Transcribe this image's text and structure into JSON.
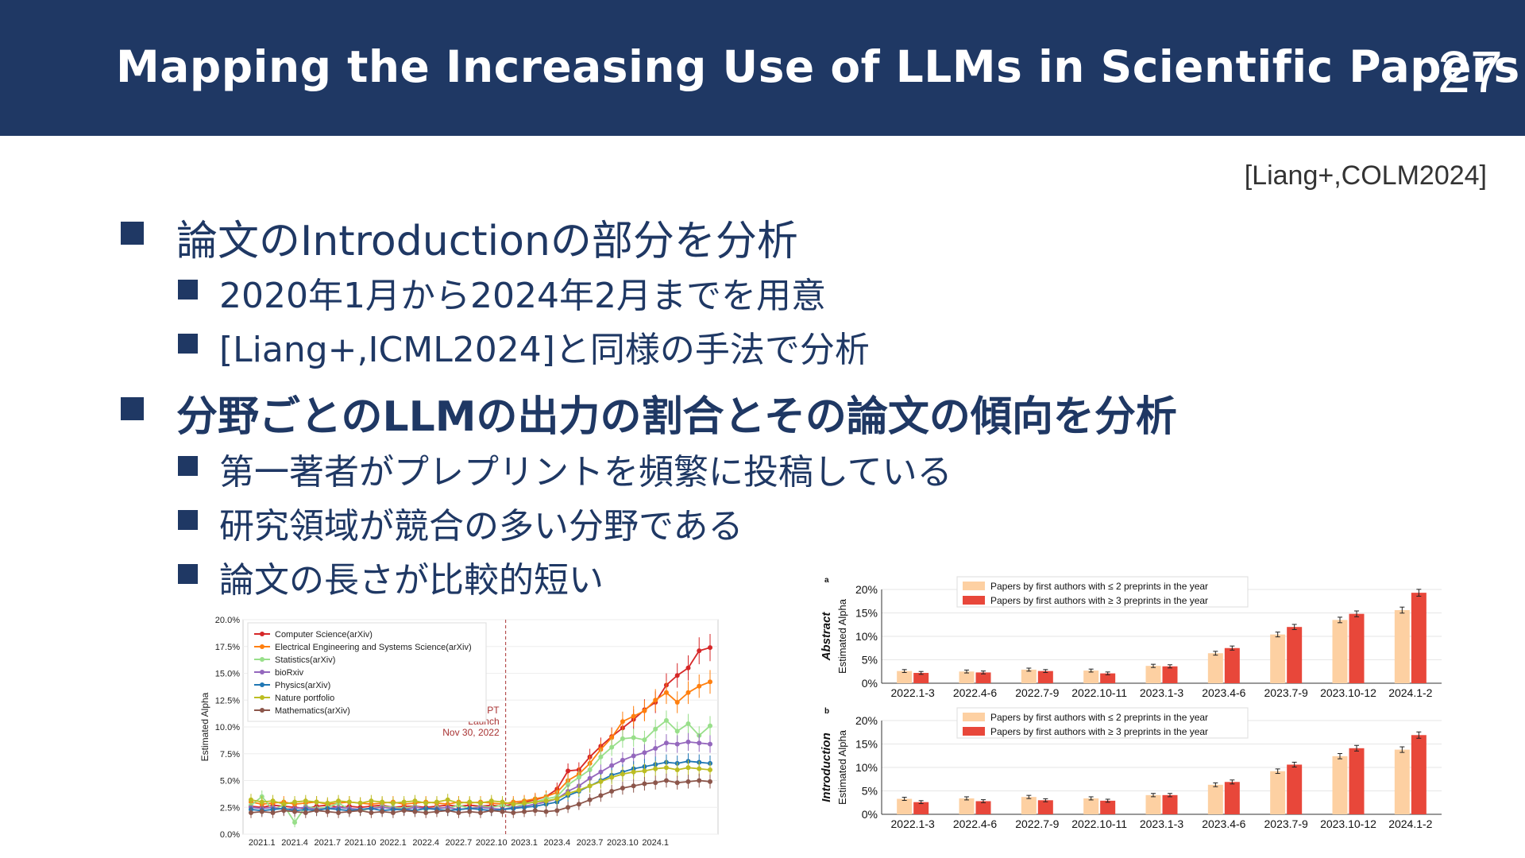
{
  "slide": {
    "title": "Mapping the Increasing Use of LLMs in Scientific Papers",
    "page_number": "27",
    "citation": "[Liang+,COLM2024]"
  },
  "bullets": [
    {
      "text": "論文のIntroductionの部分を分析",
      "sub": [
        "2020年1月から2024年2月までを用意",
        "[Liang+,ICML2024]と同様の手法で分析"
      ]
    },
    {
      "text": "分野ごとのLLMの出力の割合とその論文の傾向を分析",
      "sub": [
        "第一著者がプレプリントを頻繁に投稿している",
        "研究領域が競合の多い分野である",
        "論文の長さが比較的短い"
      ]
    }
  ],
  "chart_data": [
    {
      "type": "line",
      "ylabel": "Estimated Alpha",
      "ylim": [
        0,
        20
      ],
      "y_ticks": [
        "0.0%",
        "2.5%",
        "5.0%",
        "7.5%",
        "10.0%",
        "12.5%",
        "15.0%",
        "17.5%",
        "20.0%"
      ],
      "x_ticks": [
        "2021.1",
        "2021.4",
        "2021.7",
        "2021.10",
        "2022.1",
        "2022.4",
        "2022.7",
        "2022.10",
        "2023.1",
        "2023.4",
        "2023.7",
        "2023.10",
        "2024.1"
      ],
      "annotation": [
        "ChatGPT",
        "Launch",
        "Nov 30, 2022"
      ],
      "annotation_x": "2022.11",
      "series": [
        {
          "name": "Computer Science(arXiv)",
          "color": "#d62728",
          "values": [
            2.6,
            2.5,
            2.7,
            2.6,
            2.5,
            2.4,
            2.6,
            2.7,
            2.5,
            2.6,
            2.5,
            2.6,
            2.7,
            2.5,
            2.6,
            2.6,
            2.5,
            2.6,
            2.7,
            2.6,
            2.7,
            2.6,
            2.7,
            2.6,
            2.8,
            3.0,
            3.2,
            3.5,
            4.2,
            5.9,
            6.0,
            7.2,
            8.2,
            9.1,
            9.9,
            10.7,
            11.6,
            12.3,
            13.9,
            14.8,
            15.5,
            17.1,
            17.4
          ]
        },
        {
          "name": "Electrical Engineering and Systems Science(arXiv)",
          "color": "#ff7f0e",
          "values": [
            3.0,
            2.8,
            2.9,
            3.0,
            2.8,
            2.9,
            3.0,
            2.8,
            2.9,
            3.0,
            2.9,
            2.8,
            2.9,
            3.0,
            2.8,
            2.9,
            3.0,
            2.9,
            2.8,
            3.0,
            2.9,
            3.0,
            2.9,
            2.8,
            3.0,
            3.1,
            3.3,
            3.5,
            3.9,
            5.0,
            5.6,
            6.6,
            7.9,
            9.0,
            10.5,
            11.0,
            11.5,
            12.5,
            13.2,
            12.3,
            13.2,
            13.8,
            14.2
          ]
        },
        {
          "name": "Statistics(arXiv)",
          "color": "#98df8a",
          "values": [
            2.7,
            3.5,
            2.3,
            2.7,
            1.1,
            2.6,
            2.4,
            2.5,
            2.9,
            2.3,
            2.2,
            2.4,
            2.6,
            2.5,
            2.4,
            2.6,
            2.3,
            2.5,
            2.4,
            2.7,
            2.4,
            2.6,
            2.5,
            2.7,
            2.5,
            2.8,
            3.0,
            3.3,
            3.5,
            4.6,
            5.3,
            6.0,
            7.2,
            8.1,
            8.9,
            9.0,
            8.8,
            9.8,
            10.6,
            9.6,
            10.3,
            9.2,
            10.1
          ]
        },
        {
          "name": "bioRxiv",
          "color": "#9467bd",
          "values": [
            2.5,
            2.4,
            2.5,
            2.3,
            2.4,
            2.5,
            2.3,
            2.4,
            2.5,
            2.4,
            2.3,
            2.4,
            2.5,
            2.4,
            2.3,
            2.5,
            2.4,
            2.4,
            2.5,
            2.3,
            2.4,
            2.5,
            2.4,
            2.3,
            2.5,
            2.6,
            2.8,
            3.0,
            3.3,
            4.0,
            4.5,
            5.2,
            5.8,
            6.4,
            6.9,
            7.3,
            7.6,
            8.0,
            8.5,
            8.4,
            8.6,
            8.5,
            8.4
          ]
        },
        {
          "name": "Physics(arXiv)",
          "color": "#1f77b4",
          "values": [
            2.3,
            2.2,
            2.3,
            2.4,
            2.2,
            2.3,
            2.2,
            2.4,
            2.3,
            2.2,
            2.3,
            2.4,
            2.2,
            2.3,
            2.3,
            2.2,
            2.4,
            2.3,
            2.2,
            2.3,
            2.4,
            2.3,
            2.2,
            2.3,
            2.4,
            2.5,
            2.6,
            2.8,
            3.0,
            3.6,
            4.0,
            4.5,
            5.0,
            5.5,
            5.8,
            6.1,
            6.3,
            6.5,
            6.7,
            6.6,
            6.8,
            6.7,
            6.6
          ]
        },
        {
          "name": "Nature portfolio",
          "color": "#bcbd22",
          "values": [
            3.2,
            3.0,
            3.1,
            2.8,
            3.0,
            3.1,
            3.0,
            2.9,
            3.1,
            3.0,
            2.9,
            3.1,
            3.0,
            2.9,
            3.0,
            3.1,
            2.9,
            3.0,
            3.2,
            2.9,
            3.0,
            2.9,
            3.1,
            3.0,
            2.8,
            2.9,
            3.0,
            3.1,
            3.3,
            3.8,
            4.1,
            4.5,
            4.9,
            5.3,
            5.6,
            5.8,
            5.9,
            6.1,
            6.2,
            6.0,
            6.2,
            6.1,
            6.0
          ]
        },
        {
          "name": "Mathematics(arXiv)",
          "color": "#8c564b",
          "values": [
            2.0,
            2.1,
            2.0,
            2.2,
            2.1,
            2.0,
            2.2,
            2.1,
            2.0,
            2.1,
            2.2,
            2.0,
            2.1,
            2.0,
            2.2,
            2.1,
            2.0,
            2.1,
            2.2,
            2.0,
            2.1,
            2.0,
            2.2,
            2.1,
            2.0,
            2.1,
            2.2,
            2.1,
            2.2,
            2.5,
            2.8,
            3.2,
            3.6,
            4.0,
            4.3,
            4.5,
            4.7,
            4.8,
            5.0,
            4.8,
            4.9,
            5.0,
            4.9
          ]
        }
      ]
    },
    {
      "type": "bar",
      "panel_label": "a",
      "title": "Abstract",
      "ylabel": "Estimated Alpha",
      "ylim": [
        0,
        20
      ],
      "y_ticks": [
        "0%",
        "5%",
        "10%",
        "15%",
        "20%"
      ],
      "categories": [
        "2022.1-3",
        "2022.4-6",
        "2022.7-9",
        "2022.10-11",
        "2023.1-3",
        "2023.4-6",
        "2023.7-9",
        "2023.10-12",
        "2024.1-2"
      ],
      "series": [
        {
          "name": "Papers by first authors with ≤ 2 preprints in the year",
          "color": "#fdd0a2",
          "values": [
            2.6,
            2.5,
            2.9,
            2.7,
            3.7,
            6.4,
            10.4,
            13.5,
            15.6
          ]
        },
        {
          "name": "Papers by first authors with ≥ 3 preprints in the year",
          "color": "#e8473a",
          "values": [
            2.2,
            2.3,
            2.6,
            2.1,
            3.6,
            7.5,
            12.0,
            14.8,
            19.3
          ]
        }
      ]
    },
    {
      "type": "bar",
      "panel_label": "b",
      "title": "Introduction",
      "ylabel": "Estimated Alpha",
      "ylim": [
        0,
        20
      ],
      "y_ticks": [
        "0%",
        "5%",
        "10%",
        "15%",
        "20%"
      ],
      "categories": [
        "2022.1-3",
        "2022.4-6",
        "2022.7-9",
        "2022.10-11",
        "2023.1-3",
        "2023.4-6",
        "2023.7-9",
        "2023.10-12",
        "2024.1-2"
      ],
      "series": [
        {
          "name": "Papers by first authors with ≤ 2 preprints in the year",
          "color": "#fdd0a2",
          "values": [
            3.3,
            3.4,
            3.7,
            3.4,
            4.1,
            6.3,
            9.2,
            12.4,
            13.8
          ]
        },
        {
          "name": "Papers by first authors with ≥ 3 preprints in the year",
          "color": "#e8473a",
          "values": [
            2.6,
            2.8,
            3.0,
            2.9,
            4.1,
            6.9,
            10.6,
            14.1,
            16.9
          ]
        }
      ]
    }
  ]
}
